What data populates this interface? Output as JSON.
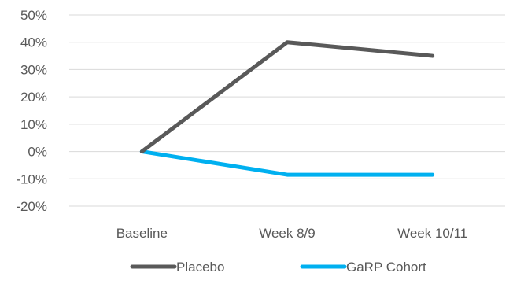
{
  "chart_data": {
    "type": "line",
    "title": "",
    "xlabel": "",
    "ylabel": "",
    "categories": [
      "Baseline",
      "Week 8/9",
      "Week 10/11"
    ],
    "series": [
      {
        "name": "Placebo",
        "values": [
          0,
          40,
          35
        ],
        "color": "#595959"
      },
      {
        "name": "GaRP Cohort",
        "values": [
          0,
          -8.5,
          -8.5
        ],
        "color": "#00B0F0"
      }
    ],
    "ylim": [
      -20,
      50
    ],
    "y_ticks": [
      50,
      40,
      30,
      20,
      10,
      0,
      -10,
      -20
    ],
    "y_tick_labels": [
      "50%",
      "40%",
      "30%",
      "20%",
      "10%",
      "0%",
      "-10%",
      "-20%"
    ],
    "grid": true,
    "gridline_color": "#D9D9D9",
    "legend_position": "bottom"
  }
}
